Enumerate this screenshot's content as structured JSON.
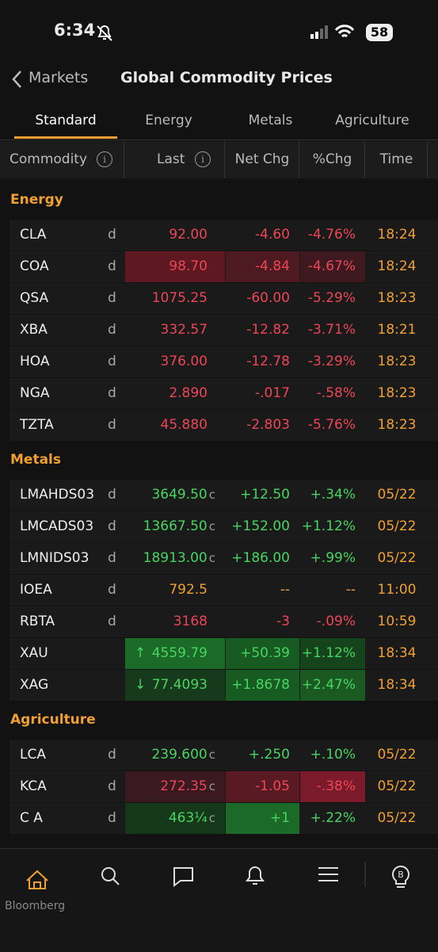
{
  "status": {
    "time": "6:34",
    "battery": "58"
  },
  "nav": {
    "back": "Markets",
    "title": "Global Commodity Prices"
  },
  "tabs": [
    "Standard",
    "Energy",
    "Metals",
    "Agriculture"
  ],
  "columns": [
    "Commodity",
    "Last",
    "Net Chg",
    "%Chg",
    "Time"
  ],
  "sections": [
    {
      "name": "Energy",
      "rows": [
        {
          "ticker": "CLA",
          "flag": "d",
          "last": "92.00",
          "net": "-4.60",
          "pct": "-4.76%",
          "time": "18:24",
          "color": "red"
        },
        {
          "ticker": "COA",
          "flag": "d",
          "last": "98.70",
          "net": "-4.84",
          "pct": "-4.67%",
          "time": "18:24",
          "color": "red",
          "highlight": {
            "last": "#5e1822",
            "net": "#4e1a22",
            "pct": "#3e1a20"
          }
        },
        {
          "ticker": "QSA",
          "flag": "d",
          "last": "1075.25",
          "net": "-60.00",
          "pct": "-5.29%",
          "time": "18:23",
          "color": "red"
        },
        {
          "ticker": "XBA",
          "flag": "d",
          "last": "332.57",
          "net": "-12.82",
          "pct": "-3.71%",
          "time": "18:21",
          "color": "red"
        },
        {
          "ticker": "HOA",
          "flag": "d",
          "last": "376.00",
          "net": "-12.78",
          "pct": "-3.29%",
          "time": "18:23",
          "color": "red"
        },
        {
          "ticker": "NGA",
          "flag": "d",
          "last": "2.890",
          "net": "-.017",
          "pct": "-.58%",
          "time": "18:23",
          "color": "red"
        },
        {
          "ticker": "TZTA",
          "flag": "d",
          "last": "45.880",
          "net": "-2.803",
          "pct": "-5.76%",
          "time": "18:23",
          "color": "red"
        }
      ]
    },
    {
      "name": "Metals",
      "rows": [
        {
          "ticker": "LMAHDS03",
          "flag": "d",
          "last": "3649.50",
          "suffix": "c",
          "net": "+12.50",
          "pct": "+.34%",
          "time": "05/22",
          "color": "green"
        },
        {
          "ticker": "LMCADS03",
          "flag": "d",
          "last": "13667.50",
          "suffix": "c",
          "net": "+152.00",
          "pct": "+1.12%",
          "time": "05/22",
          "color": "green"
        },
        {
          "ticker": "LMNIDS03",
          "flag": "d",
          "last": "18913.00",
          "suffix": "c",
          "net": "+186.00",
          "pct": "+.99%",
          "time": "05/22",
          "color": "green"
        },
        {
          "ticker": "IOEA",
          "flag": "d",
          "last": "792.5",
          "net": "--",
          "pct": "--",
          "time": "11:00",
          "color": "orange"
        },
        {
          "ticker": "RBTA",
          "flag": "d",
          "last": "3168",
          "net": "-3",
          "pct": "-.09%",
          "time": "10:59",
          "color": "red"
        },
        {
          "ticker": "XAU",
          "arrow": "↑",
          "last": "4559.79",
          "net": "+50.39",
          "pct": "+1.12%",
          "time": "18:34",
          "color": "green",
          "highlight": {
            "last": "#1c6a28",
            "net": "#175a22",
            "pct": "#15441c"
          }
        },
        {
          "ticker": "XAG",
          "arrow": "↓",
          "last": "77.4093",
          "net": "+1.8678",
          "pct": "+2.47%",
          "time": "18:34",
          "color": "green",
          "highlight": {
            "last": "#173a1c",
            "net": "#175a22",
            "pct": "#1a5a22"
          }
        }
      ]
    },
    {
      "name": "Agriculture",
      "rows": [
        {
          "ticker": "LCA",
          "flag": "d",
          "last": "239.600",
          "suffix": "c",
          "net": "+.250",
          "pct": "+.10%",
          "time": "05/22",
          "color": "green"
        },
        {
          "ticker": "KCA",
          "flag": "d",
          "last": "272.35",
          "suffix": "c",
          "net": "-1.05",
          "pct": "-.38%",
          "time": "05/22",
          "color": "red",
          "highlight": {
            "last": "#3a1a20",
            "net": "#5a1a24",
            "pct": "#7a1a2a"
          }
        },
        {
          "ticker": "C A",
          "flag": "d",
          "last": "463¼",
          "suffix": "c",
          "net": "+1",
          "pct": "+.22%",
          "time": "05/22",
          "color": "green",
          "highlight": {
            "last": "#15381a",
            "net": "#1c6a28"
          }
        }
      ]
    }
  ],
  "footer": "Bloomberg"
}
